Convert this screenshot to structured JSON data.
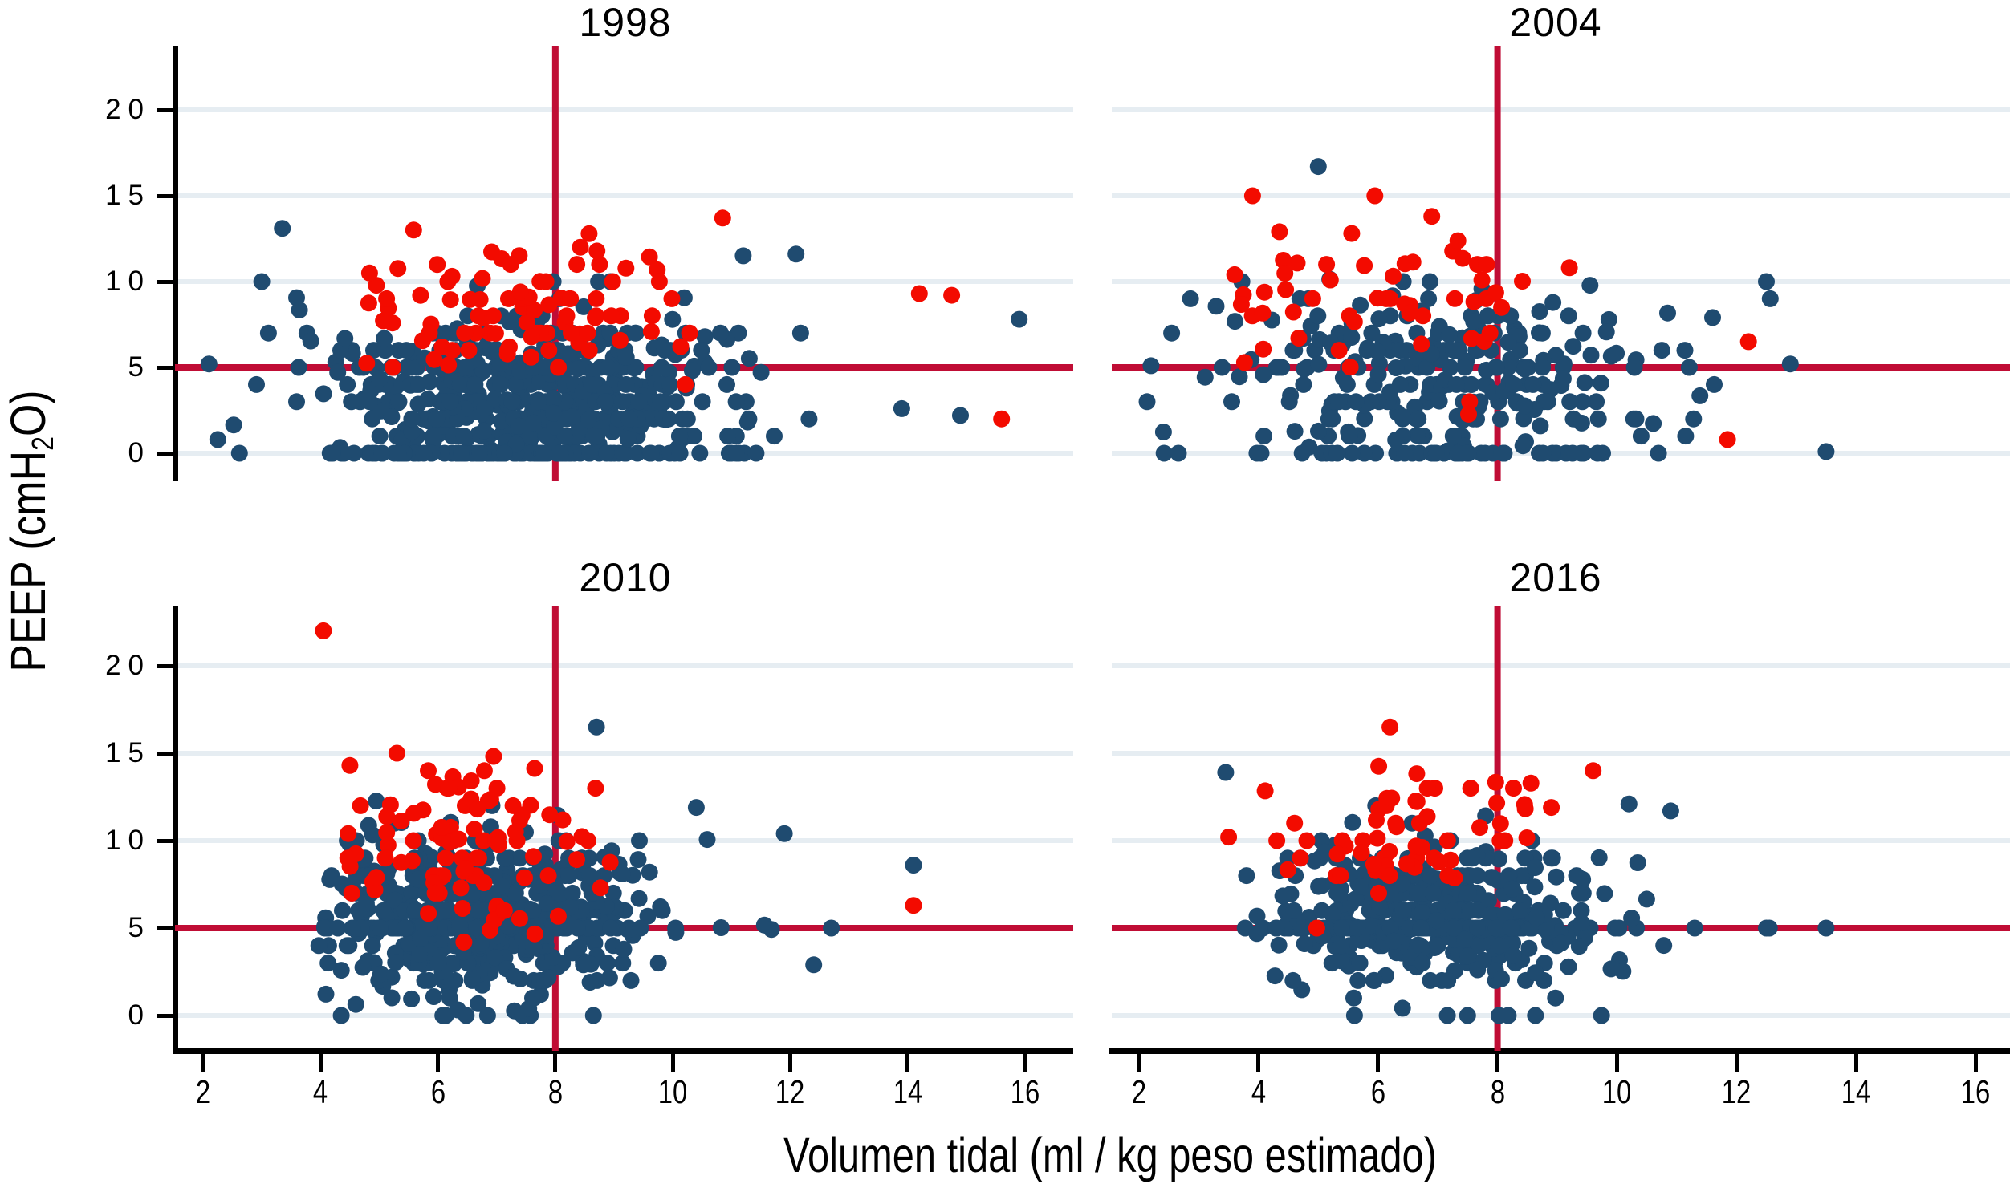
{
  "chart_data": {
    "type": "scatter",
    "layout_hint": "2x2 small-multiple scatter panels, shared axes, grid on, no legend",
    "xlabel": "Volumen tidal (ml / kg peso estimado)",
    "ylabel": "PEEP (cmH2O)",
    "ylabel_parts": {
      "pre": "PEEP (cmH",
      "sub": "2",
      "post": "O)"
    },
    "x_ticks": [
      2,
      4,
      6,
      8,
      10,
      12,
      14,
      16
    ],
    "y_ticks": [
      0,
      5,
      10,
      15,
      20
    ],
    "xlim": [
      1.5,
      16.6
    ],
    "ylim": [
      -1.5,
      23.5
    ],
    "reference_lines": {
      "x": 8,
      "y": 5
    },
    "colors": {
      "point_primary": "#1f4b70",
      "point_highlight": "#f30b00",
      "reference_line": "#c00d35",
      "gridline": "#e6edf2",
      "axis": "#000000",
      "background": "#ffffff"
    },
    "points_are_approximate": true,
    "panels": [
      {
        "title": "1998",
        "row": 0,
        "col": 0,
        "blue": {
          "count": 600,
          "seed": 101,
          "x": {
            "mean": 7.5,
            "sd": 1.8,
            "min": 2.05,
            "max": 16.3
          },
          "y": {
            "mean": 3.1,
            "sd": 2.5,
            "min": 0,
            "max": 13.2
          },
          "p_zero": 0.15,
          "p_int": 0.55,
          "p_five": 0
        },
        "red": {
          "count": 90,
          "seed": 202,
          "x": {
            "mean": 7.4,
            "sd": 1.5,
            "min": 4.3,
            "max": 11.3
          },
          "y": {
            "mean": 8.2,
            "sd": 2.2,
            "min": 2.2,
            "max": 13.8
          },
          "p_zero": 0,
          "p_int": 0.4,
          "p_five": 0
        },
        "extra_blue": [
          [
            2.1,
            5.2
          ],
          [
            2.25,
            0.8
          ],
          [
            3.0,
            10.0
          ],
          [
            3.35,
            13.1
          ],
          [
            15.9,
            7.8
          ],
          [
            13.9,
            2.6
          ],
          [
            14.9,
            2.2
          ],
          [
            12.1,
            11.6
          ],
          [
            11.2,
            11.5
          ]
        ],
        "extra_red": [
          [
            14.2,
            9.3
          ],
          [
            14.75,
            9.2
          ],
          [
            15.6,
            2.0
          ],
          [
            10.85,
            13.7
          ]
        ]
      },
      {
        "title": "2004",
        "row": 0,
        "col": 1,
        "blue": {
          "count": 300,
          "seed": 303,
          "x": {
            "mean": 6.9,
            "sd": 1.85,
            "min": 2.1,
            "max": 13.6
          },
          "y": {
            "mean": 4.3,
            "sd": 2.6,
            "min": 0,
            "max": 11.9
          },
          "p_zero": 0.13,
          "p_int": 0.5,
          "p_five": 0
        },
        "red": {
          "count": 52,
          "seed": 404,
          "x": {
            "mean": 6.3,
            "sd": 1.7,
            "min": 3.5,
            "max": 12.3
          },
          "y": {
            "mean": 8.8,
            "sd": 2.5,
            "min": 0.8,
            "max": 15.2
          },
          "p_zero": 0,
          "p_int": 0.3,
          "p_five": 0
        },
        "extra_blue": [
          [
            5.0,
            16.7
          ],
          [
            12.5,
            10.0
          ],
          [
            2.2,
            5.1
          ],
          [
            13.5,
            0.1
          ],
          [
            12.9,
            5.2
          ],
          [
            11.6,
            7.9
          ]
        ],
        "extra_red": [
          [
            3.9,
            15.0
          ],
          [
            4.35,
            12.9
          ],
          [
            3.6,
            10.4
          ],
          [
            12.2,
            6.5
          ],
          [
            11.85,
            0.8
          ],
          [
            6.9,
            13.8
          ]
        ]
      },
      {
        "title": "2010",
        "row": 1,
        "col": 0,
        "blue": {
          "count": 600,
          "seed": 505,
          "x": {
            "mean": 6.6,
            "sd": 1.45,
            "min": 3.95,
            "max": 12.9
          },
          "y": {
            "mean": 5.7,
            "sd": 2.4,
            "min": 0,
            "max": 13.2
          },
          "p_zero": 0.02,
          "p_int": 0.45,
          "p_five": 0.1
        },
        "red": {
          "count": 95,
          "seed": 606,
          "x": {
            "mean": 6.3,
            "sd": 1.2,
            "min": 4.4,
            "max": 10.7
          },
          "y": {
            "mean": 9.7,
            "sd": 2.4,
            "min": 4.2,
            "max": 15.3
          },
          "p_zero": 0,
          "p_int": 0.35,
          "p_five": 0
        },
        "extra_blue": [
          [
            8.7,
            16.5
          ],
          [
            14.1,
            8.6
          ],
          [
            11.9,
            10.4
          ],
          [
            12.7,
            5.0
          ],
          [
            12.4,
            2.9
          ],
          [
            10.4,
            11.9
          ]
        ],
        "extra_red": [
          [
            4.05,
            22.0
          ],
          [
            14.1,
            6.3
          ],
          [
            4.5,
            14.3
          ],
          [
            5.3,
            15.0
          ]
        ]
      },
      {
        "title": "2016",
        "row": 1,
        "col": 1,
        "blue": {
          "count": 450,
          "seed": 707,
          "x": {
            "mean": 6.9,
            "sd": 1.4,
            "min": 3.4,
            "max": 11.6
          },
          "y": {
            "mean": 5.8,
            "sd": 2.2,
            "min": 0,
            "max": 12.3
          },
          "p_zero": 0.02,
          "p_int": 0.45,
          "p_five": 0.2
        },
        "red": {
          "count": 62,
          "seed": 808,
          "x": {
            "mean": 6.4,
            "sd": 1.35,
            "min": 4.1,
            "max": 10.0
          },
          "y": {
            "mean": 9.9,
            "sd": 2.2,
            "min": 4.4,
            "max": 14.9
          },
          "p_zero": 0,
          "p_int": 0.3,
          "p_five": 0
        },
        "extra_blue": [
          [
            13.5,
            5.0
          ],
          [
            12.55,
            5.0
          ],
          [
            11.3,
            5.0
          ],
          [
            10.2,
            12.1
          ],
          [
            10.9,
            11.7
          ],
          [
            3.45,
            13.9
          ],
          [
            12.5,
            5.0
          ]
        ],
        "extra_red": [
          [
            6.2,
            16.5
          ],
          [
            9.6,
            14.0
          ],
          [
            8.9,
            11.9
          ],
          [
            3.5,
            10.2
          ]
        ]
      }
    ]
  }
}
